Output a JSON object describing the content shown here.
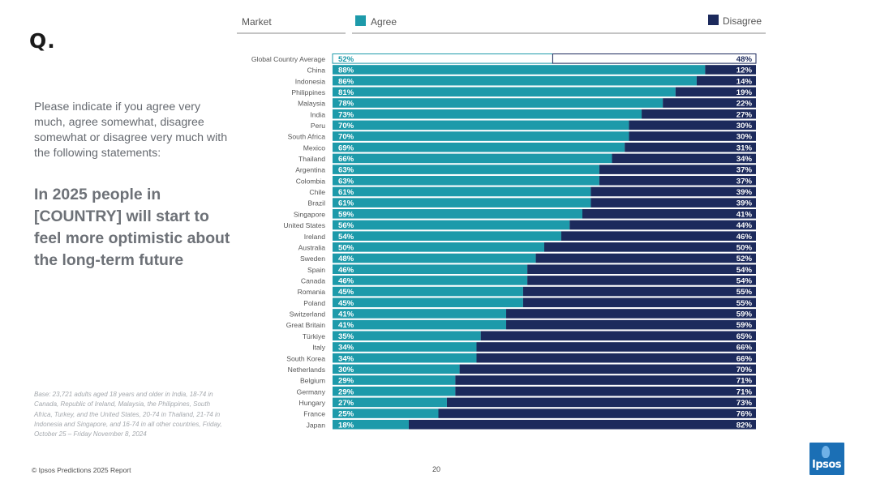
{
  "slide": {
    "q_label": "Q.",
    "question": "Please indicate if you agree very much, agree somewhat, disagree somewhat or disagree very much with the following statements:",
    "statement": "In 2025 people in [COUNTRY] will start to feel more optimistic about the long-term future",
    "base_note": "Base: 23,721 adults aged 18 years and older in India, 18-74 in Canada, Republic of Ireland, Malaysia, the Philippines, South Africa, Turkey, and the United States, 20-74 in Thailand, 21-74 in Indonesia and Singapore, and 16-74 in all other countries, Friday, October 25 – Friday November 8, 2024",
    "footer": "© Ipsos Predictions 2025 Report",
    "page_number": "20",
    "logo_text": "Ipsos"
  },
  "chart_data": {
    "type": "bar",
    "orientation": "horizontal-stacked-100",
    "header_market": "Market",
    "legend": [
      {
        "name": "Agree",
        "color": "#1d9aaa"
      },
      {
        "name": "Disagree",
        "color": "#1c2a5c"
      }
    ],
    "categories": [
      "Global Country Average",
      "China",
      "Indonesia",
      "Philippines",
      "Malaysia",
      "India",
      "Peru",
      "South Africa",
      "Mexico",
      "Thailand",
      "Argentina",
      "Colombia",
      "Chile",
      "Brazil",
      "Singapore",
      "United States",
      "Ireland",
      "Australia",
      "Sweden",
      "Spain",
      "Canada",
      "Romania",
      "Poland",
      "Switzerland",
      "Great Britain",
      "Türkiye",
      "Italy",
      "South Korea",
      "Netherlands",
      "Belgium",
      "Germany",
      "Hungary",
      "France",
      "Japan"
    ],
    "series": [
      {
        "name": "Agree",
        "values": [
          52,
          88,
          86,
          81,
          78,
          73,
          70,
          70,
          69,
          66,
          63,
          63,
          61,
          61,
          59,
          56,
          54,
          50,
          48,
          46,
          46,
          45,
          45,
          41,
          41,
          35,
          34,
          34,
          30,
          29,
          29,
          27,
          25,
          18
        ]
      },
      {
        "name": "Disagree",
        "values": [
          48,
          12,
          14,
          19,
          22,
          27,
          30,
          30,
          31,
          34,
          37,
          37,
          39,
          39,
          41,
          44,
          46,
          50,
          52,
          54,
          54,
          55,
          55,
          59,
          59,
          65,
          66,
          66,
          70,
          71,
          71,
          73,
          76,
          82
        ]
      }
    ],
    "labels_agree": [
      "52%",
      "88%",
      "86%",
      "81%",
      "78%",
      "73%",
      "70%",
      "70%",
      "69%",
      "66%",
      "63%",
      "63%",
      "61%",
      "61%",
      "59%",
      "56%",
      "54%",
      "50%",
      "48%",
      "46%",
      "46%",
      "45%",
      "45%",
      "41%",
      "41%",
      "35%",
      "34%",
      "34%",
      "30%",
      "29%",
      "29%",
      "27%",
      "25%",
      "18%"
    ],
    "labels_disagree": [
      "48%",
      "12%",
      "14%",
      "19%",
      "22%",
      "27%",
      "30%",
      "30%",
      "31%",
      "34%",
      "37%",
      "37%",
      "39%",
      "39%",
      "41%",
      "44%",
      "46%",
      "50%",
      "52%",
      "54%",
      "54%",
      "55%",
      "55%",
      "59%",
      "59%",
      "65%",
      "66%",
      "66%",
      "70%",
      "71%",
      "71%",
      "73%",
      "76%",
      "82%"
    ],
    "highlight_first_row": "outlined",
    "xlim": [
      0,
      100
    ]
  }
}
